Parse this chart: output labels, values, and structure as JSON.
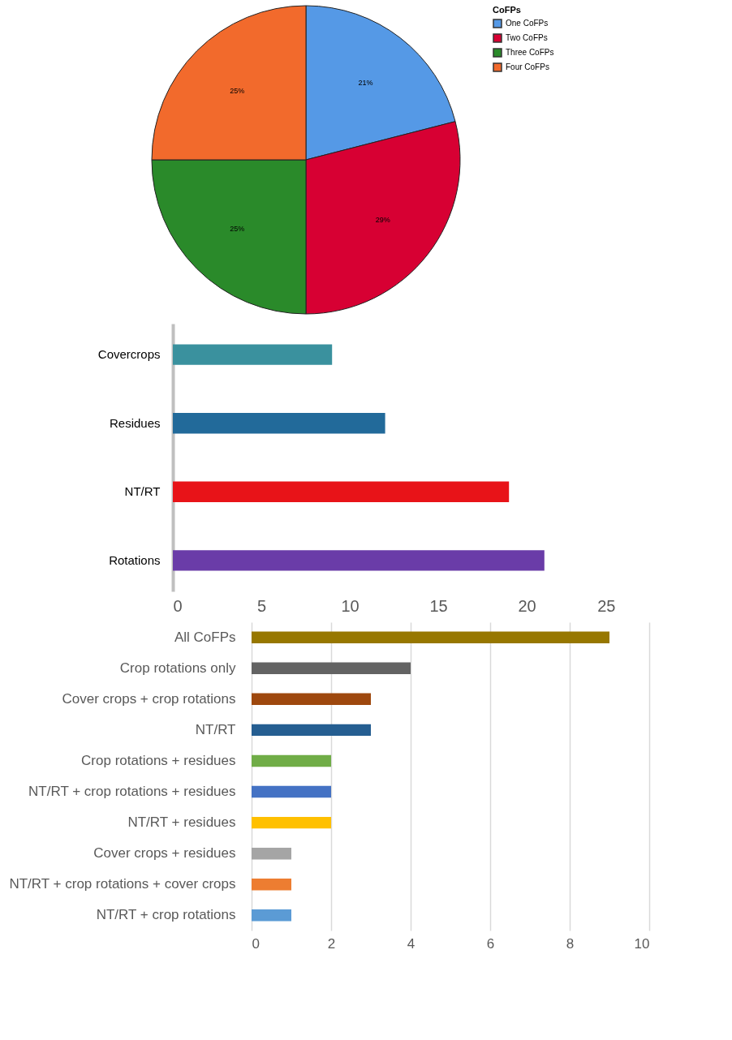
{
  "chart_data": [
    {
      "type": "pie",
      "legend_title": "CoFPs",
      "legend": "right",
      "categories": [
        "One CoFPs",
        "Two CoFPs",
        "Three CoFPs",
        "Four  CoFPs"
      ],
      "values": [
        21,
        29,
        25,
        25
      ],
      "colors": [
        "#5599e6",
        "#d70033",
        "#2a8a2a",
        "#f26a2c"
      ],
      "value_labels": [
        "21%",
        "29%",
        "25%",
        "25%"
      ]
    },
    {
      "type": "bar",
      "orientation": "horizontal",
      "categories": [
        "Covercrops",
        "Residues",
        "NT/RT",
        "Rotations"
      ],
      "values": [
        9,
        12,
        19,
        21
      ],
      "colors": [
        "#3a919e",
        "#226a9a",
        "#e81318",
        "#6a3ca8"
      ],
      "xlim": [
        0,
        25
      ],
      "xticks": [
        0,
        5,
        10,
        15,
        20,
        25
      ],
      "grid": false
    },
    {
      "type": "bar",
      "orientation": "horizontal",
      "categories": [
        "All CoFPs",
        "Crop rotations only",
        "Cover crops + crop rotations ",
        "NT/RT",
        "Crop rotations + residues",
        "NT/RT + crop rotations + residues",
        "NT/RT + residues",
        "Cover crops + residues",
        "NT/RT + crop rotations + cover crops",
        "NT/RT + crop rotations"
      ],
      "values": [
        9,
        4,
        3,
        3,
        2,
        2,
        2,
        1,
        1,
        1
      ],
      "colors": [
        "#977700",
        "#636363",
        "#9e480e",
        "#255e91",
        "#70ad47",
        "#4472c4",
        "#ffc000",
        "#a5a5a5",
        "#ed7d31",
        "#5b9bd5"
      ],
      "xlim": [
        0,
        10
      ],
      "xticks": [
        0,
        2,
        4,
        6,
        8,
        10
      ],
      "grid": "x"
    }
  ]
}
